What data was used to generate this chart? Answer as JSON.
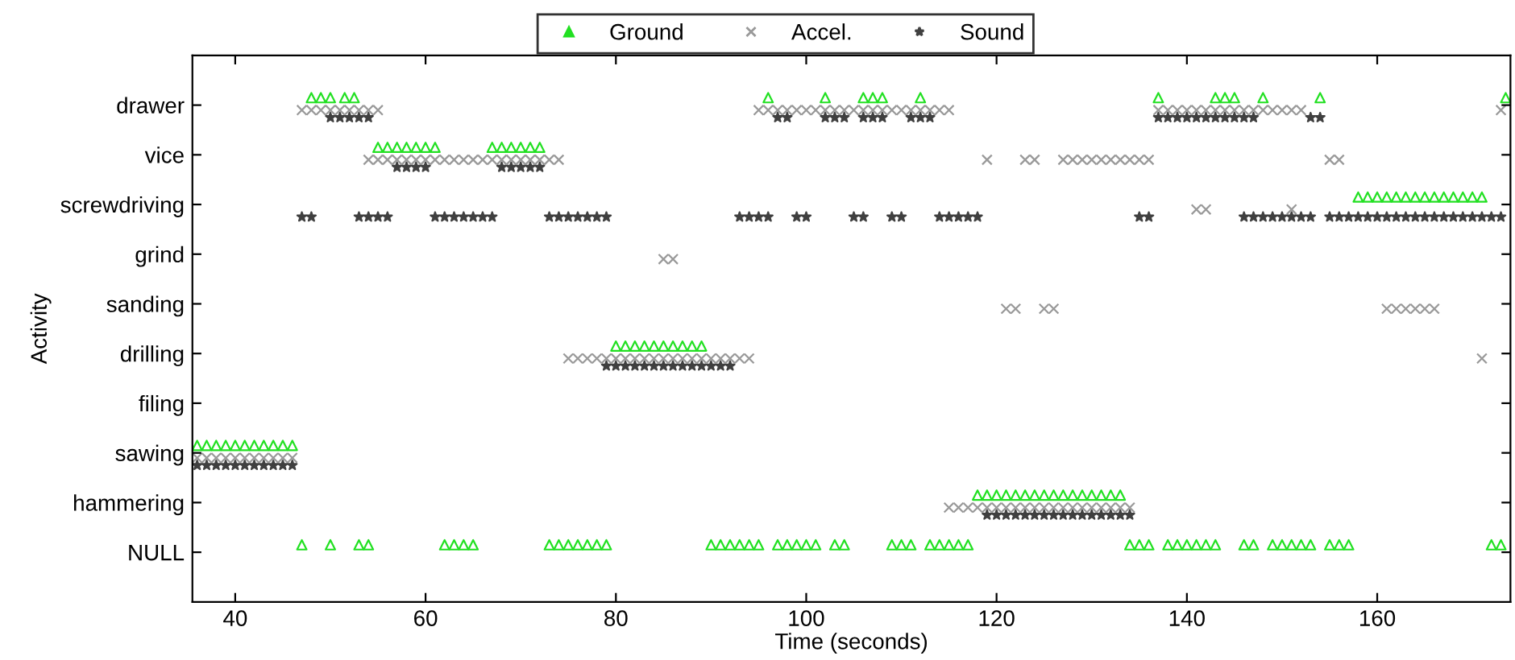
{
  "chart_data": {
    "type": "scatter",
    "orientation": "horizontal",
    "xlabel": "Time (seconds)",
    "ylabel": "Activity",
    "xlim": [
      35.5,
      174
    ],
    "xticks": [
      40,
      60,
      80,
      100,
      120,
      140,
      160
    ],
    "categories": [
      "drawer",
      "vice",
      "screwdriving",
      "grind",
      "sanding",
      "drilling",
      "filing",
      "sawing",
      "hammering",
      "NULL"
    ],
    "legend": "top",
    "grid": false,
    "series": [
      {
        "name": "Ground",
        "color": "#22e022",
        "marker": "triangle",
        "values": [
          48,
          49,
          50,
          51.5,
          52.5,
          96,
          102,
          106,
          107,
          108,
          112,
          137,
          143,
          144,
          145,
          148,
          154,
          173.5
        ],
        "x": [
          "drawer",
          "drawer",
          "drawer",
          "drawer",
          "drawer",
          "drawer",
          "drawer",
          "drawer",
          "drawer",
          "drawer",
          "drawer",
          "drawer",
          "drawer",
          "drawer",
          "drawer",
          "drawer",
          "drawer",
          "drawer"
        ]
      },
      {
        "color": "#22e022",
        "marker": "triangle",
        "values": [
          55,
          56,
          57,
          58,
          59,
          60,
          61,
          67,
          68,
          69,
          70,
          71,
          72
        ],
        "x": [
          "vice",
          "vice",
          "vice",
          "vice",
          "vice",
          "vice",
          "vice",
          "vice",
          "vice",
          "vice",
          "vice",
          "vice",
          "vice"
        ]
      },
      {
        "color": "#22e022",
        "marker": "triangle",
        "values": [
          158,
          159,
          160,
          161,
          162,
          163,
          164,
          165,
          166,
          167,
          168,
          169,
          170,
          171
        ],
        "x": [
          "screwdriving",
          "screwdriving",
          "screwdriving",
          "screwdriving",
          "screwdriving",
          "screwdriving",
          "screwdriving",
          "screwdriving",
          "screwdriving",
          "screwdriving",
          "screwdriving",
          "screwdriving",
          "screwdriving",
          "screwdriving"
        ]
      },
      {
        "color": "#22e022",
        "marker": "triangle",
        "values": [
          80,
          81,
          82,
          83,
          84,
          85,
          86,
          87,
          88,
          89
        ],
        "x": [
          "drilling",
          "drilling",
          "drilling",
          "drilling",
          "drilling",
          "drilling",
          "drilling",
          "drilling",
          "drilling",
          "drilling"
        ]
      },
      {
        "color": "#22e022",
        "marker": "triangle",
        "values": [
          36,
          37,
          38,
          39,
          40,
          41,
          42,
          43,
          44,
          45,
          46
        ],
        "x": [
          "sawing",
          "sawing",
          "sawing",
          "sawing",
          "sawing",
          "sawing",
          "sawing",
          "sawing",
          "sawing",
          "sawing",
          "sawing"
        ]
      },
      {
        "color": "#22e022",
        "marker": "triangle",
        "values": [
          118,
          119,
          120,
          121,
          122,
          123,
          124,
          125,
          126,
          127,
          128,
          129,
          130,
          131,
          132,
          133
        ],
        "x": [
          "hammering",
          "hammering",
          "hammering",
          "hammering",
          "hammering",
          "hammering",
          "hammering",
          "hammering",
          "hammering",
          "hammering",
          "hammering",
          "hammering",
          "hammering",
          "hammering",
          "hammering",
          "hammering"
        ]
      },
      {
        "color": "#22e022",
        "marker": "triangle",
        "values": [
          47,
          50,
          53,
          54,
          62,
          63,
          64,
          65,
          73,
          74,
          75,
          76,
          77,
          78,
          79,
          90,
          91,
          92,
          93,
          94,
          95,
          97,
          98,
          99,
          100,
          101,
          103,
          104,
          109,
          110,
          111,
          113,
          114,
          115,
          116,
          117,
          134,
          135,
          136,
          138,
          139,
          140,
          141,
          142,
          143,
          146,
          147,
          149,
          150,
          151,
          152,
          153,
          155,
          156,
          157,
          172,
          173
        ],
        "x": [
          "NULL",
          "NULL",
          "NULL",
          "NULL",
          "NULL",
          "NULL",
          "NULL",
          "NULL",
          "NULL",
          "NULL",
          "NULL",
          "NULL",
          "NULL",
          "NULL",
          "NULL",
          "NULL",
          "NULL",
          "NULL",
          "NULL",
          "NULL",
          "NULL",
          "NULL",
          "NULL",
          "NULL",
          "NULL",
          "NULL",
          "NULL",
          "NULL",
          "NULL",
          "NULL",
          "NULL",
          "NULL",
          "NULL",
          "NULL",
          "NULL",
          "NULL",
          "NULL",
          "NULL",
          "NULL",
          "NULL",
          "NULL",
          "NULL",
          "NULL",
          "NULL",
          "NULL",
          "NULL",
          "NULL",
          "NULL",
          "NULL",
          "NULL",
          "NULL",
          "NULL",
          "NULL",
          "NULL",
          "NULL",
          "NULL",
          "NULL"
        ]
      },
      {
        "name": "Accel.",
        "color": "#999999",
        "marker": "cross",
        "values": [
          47,
          48,
          49,
          50,
          51,
          52,
          53,
          54,
          55,
          95,
          96,
          97,
          98,
          99,
          100,
          101,
          102,
          103,
          104,
          105,
          106,
          107,
          108,
          109,
          110,
          111,
          112,
          113,
          114,
          115,
          137,
          138,
          139,
          140,
          141,
          142,
          143,
          144,
          145,
          146,
          147,
          148,
          149,
          150,
          151,
          152,
          173
        ],
        "x": [
          "drawer",
          "drawer",
          "drawer",
          "drawer",
          "drawer",
          "drawer",
          "drawer",
          "drawer",
          "drawer",
          "drawer",
          "drawer",
          "drawer",
          "drawer",
          "drawer",
          "drawer",
          "drawer",
          "drawer",
          "drawer",
          "drawer",
          "drawer",
          "drawer",
          "drawer",
          "drawer",
          "drawer",
          "drawer",
          "drawer",
          "drawer",
          "drawer",
          "drawer",
          "drawer",
          "drawer",
          "drawer",
          "drawer",
          "drawer",
          "drawer",
          "drawer",
          "drawer",
          "drawer",
          "drawer",
          "drawer",
          "drawer",
          "drawer",
          "drawer",
          "drawer",
          "drawer",
          "drawer",
          "drawer"
        ]
      },
      {
        "color": "#999999",
        "marker": "cross",
        "values": [
          54,
          55,
          56,
          57,
          58,
          59,
          60,
          61,
          62,
          63,
          64,
          65,
          66,
          67,
          68,
          69,
          70,
          71,
          72,
          73,
          74,
          119,
          123,
          124,
          127,
          128,
          129,
          130,
          131,
          132,
          133,
          134,
          135,
          136,
          155,
          156
        ],
        "x": [
          "vice",
          "vice",
          "vice",
          "vice",
          "vice",
          "vice",
          "vice",
          "vice",
          "vice",
          "vice",
          "vice",
          "vice",
          "vice",
          "vice",
          "vice",
          "vice",
          "vice",
          "vice",
          "vice",
          "vice",
          "vice",
          "vice",
          "vice",
          "vice",
          "vice",
          "vice",
          "vice",
          "vice",
          "vice",
          "vice",
          "vice",
          "vice",
          "vice",
          "vice",
          "vice",
          "vice"
        ]
      },
      {
        "color": "#999999",
        "marker": "cross",
        "values": [
          141,
          142,
          151
        ],
        "x": [
          "screwdriving",
          "screwdriving",
          "screwdriving"
        ]
      },
      {
        "color": "#999999",
        "marker": "cross",
        "values": [
          85,
          86
        ],
        "x": [
          "grind",
          "grind"
        ]
      },
      {
        "color": "#999999",
        "marker": "cross",
        "values": [
          121,
          122,
          125,
          126,
          161,
          162,
          163,
          164,
          165,
          166
        ],
        "x": [
          "sanding",
          "sanding",
          "sanding",
          "sanding",
          "sanding",
          "sanding",
          "sanding",
          "sanding",
          "sanding",
          "sanding"
        ]
      },
      {
        "color": "#999999",
        "marker": "cross",
        "values": [
          75,
          76,
          77,
          78,
          79,
          80,
          81,
          82,
          83,
          84,
          85,
          86,
          87,
          88,
          89,
          90,
          91,
          92,
          93,
          94,
          171
        ],
        "x": [
          "drilling",
          "drilling",
          "drilling",
          "drilling",
          "drilling",
          "drilling",
          "drilling",
          "drilling",
          "drilling",
          "drilling",
          "drilling",
          "drilling",
          "drilling",
          "drilling",
          "drilling",
          "drilling",
          "drilling",
          "drilling",
          "drilling",
          "drilling",
          "drilling"
        ]
      },
      {
        "color": "#999999",
        "marker": "cross",
        "values": [
          36,
          37,
          38,
          39,
          40,
          41,
          42,
          43,
          44,
          45,
          46
        ],
        "x": [
          "sawing",
          "sawing",
          "sawing",
          "sawing",
          "sawing",
          "sawing",
          "sawing",
          "sawing",
          "sawing",
          "sawing",
          "sawing"
        ]
      },
      {
        "color": "#999999",
        "marker": "cross",
        "values": [
          115,
          116,
          117,
          118,
          119,
          120,
          121,
          122,
          123,
          124,
          125,
          126,
          127,
          128,
          129,
          130,
          131,
          132,
          133,
          134
        ],
        "x": [
          "hammering",
          "hammering",
          "hammering",
          "hammering",
          "hammering",
          "hammering",
          "hammering",
          "hammering",
          "hammering",
          "hammering",
          "hammering",
          "hammering",
          "hammering",
          "hammering",
          "hammering",
          "hammering",
          "hammering",
          "hammering",
          "hammering",
          "hammering"
        ]
      },
      {
        "name": "Sound",
        "color": "#404040",
        "marker": "star",
        "values": [
          50,
          51,
          52,
          53,
          54,
          97,
          98,
          102,
          103,
          104,
          106,
          107,
          108,
          111,
          112,
          113,
          137,
          138,
          139,
          140,
          141,
          142,
          143,
          144,
          145,
          146,
          147,
          153,
          154
        ],
        "x": [
          "drawer",
          "drawer",
          "drawer",
          "drawer",
          "drawer",
          "drawer",
          "drawer",
          "drawer",
          "drawer",
          "drawer",
          "drawer",
          "drawer",
          "drawer",
          "drawer",
          "drawer",
          "drawer",
          "drawer",
          "drawer",
          "drawer",
          "drawer",
          "drawer",
          "drawer",
          "drawer",
          "drawer",
          "drawer",
          "drawer",
          "drawer",
          "drawer",
          "drawer"
        ]
      },
      {
        "color": "#404040",
        "marker": "star",
        "values": [
          57,
          58,
          59,
          60,
          68,
          69,
          70,
          71,
          72
        ],
        "x": [
          "vice",
          "vice",
          "vice",
          "vice",
          "vice",
          "vice",
          "vice",
          "vice",
          "vice"
        ]
      },
      {
        "color": "#404040",
        "marker": "star",
        "values": [
          47,
          48,
          53,
          54,
          55,
          56,
          61,
          62,
          63,
          64,
          65,
          66,
          67,
          73,
          74,
          75,
          76,
          77,
          78,
          79,
          93,
          94,
          95,
          96,
          99,
          100,
          105,
          106,
          109,
          110,
          114,
          115,
          116,
          117,
          118,
          135,
          136,
          146,
          147,
          148,
          149,
          150,
          151,
          152,
          153,
          155,
          156,
          157,
          158,
          159,
          160,
          161,
          162,
          163,
          164,
          165,
          166,
          167,
          168,
          169,
          170,
          171,
          172,
          173
        ],
        "x": [
          "screwdriving",
          "screwdriving",
          "screwdriving",
          "screwdriving",
          "screwdriving",
          "screwdriving",
          "screwdriving",
          "screwdriving",
          "screwdriving",
          "screwdriving",
          "screwdriving",
          "screwdriving",
          "screwdriving",
          "screwdriving",
          "screwdriving",
          "screwdriving",
          "screwdriving",
          "screwdriving",
          "screwdriving",
          "screwdriving",
          "screwdriving",
          "screwdriving",
          "screwdriving",
          "screwdriving",
          "screwdriving",
          "screwdriving",
          "screwdriving",
          "screwdriving",
          "screwdriving",
          "screwdriving",
          "screwdriving",
          "screwdriving",
          "screwdriving",
          "screwdriving",
          "screwdriving",
          "screwdriving",
          "screwdriving",
          "screwdriving",
          "screwdriving",
          "screwdriving",
          "screwdriving",
          "screwdriving",
          "screwdriving",
          "screwdriving",
          "screwdriving",
          "screwdriving",
          "screwdriving",
          "screwdriving",
          "screwdriving",
          "screwdriving",
          "screwdriving",
          "screwdriving",
          "screwdriving",
          "screwdriving",
          "screwdriving",
          "screwdriving",
          "screwdriving",
          "screwdriving",
          "screwdriving",
          "screwdriving",
          "screwdriving",
          "screwdriving",
          "screwdriving",
          "screwdriving"
        ]
      },
      {
        "color": "#404040",
        "marker": "star",
        "values": [
          79,
          80,
          81,
          82,
          83,
          84,
          85,
          86,
          87,
          88,
          89,
          90,
          91,
          92
        ],
        "x": [
          "drilling",
          "drilling",
          "drilling",
          "drilling",
          "drilling",
          "drilling",
          "drilling",
          "drilling",
          "drilling",
          "drilling",
          "drilling",
          "drilling",
          "drilling",
          "drilling"
        ]
      },
      {
        "color": "#404040",
        "marker": "star",
        "values": [
          36,
          37,
          38,
          39,
          40,
          41,
          42,
          43,
          44,
          45,
          46
        ],
        "x": [
          "sawing",
          "sawing",
          "sawing",
          "sawing",
          "sawing",
          "sawing",
          "sawing",
          "sawing",
          "sawing",
          "sawing",
          "sawing"
        ]
      },
      {
        "color": "#404040",
        "marker": "star",
        "values": [
          119,
          120,
          121,
          122,
          123,
          124,
          125,
          126,
          127,
          128,
          129,
          130,
          131,
          132,
          133,
          134
        ],
        "x": [
          "hammering",
          "hammering",
          "hammering",
          "hammering",
          "hammering",
          "hammering",
          "hammering",
          "hammering",
          "hammering",
          "hammering",
          "hammering",
          "hammering",
          "hammering",
          "hammering",
          "hammering",
          "hammering"
        ]
      }
    ]
  }
}
